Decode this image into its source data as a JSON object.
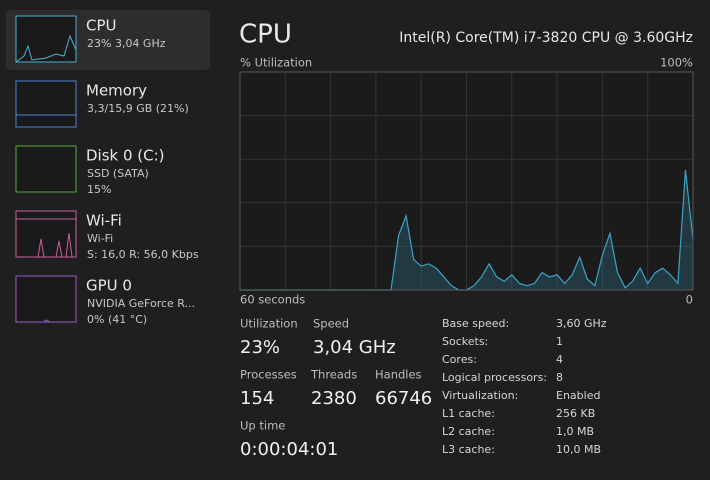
{
  "sidebar": [
    {
      "title": "CPU",
      "lines": [
        "23% 3,04 GHz"
      ]
    },
    {
      "title": "Memory",
      "lines": [
        "3,3/15,9 GB (21%)"
      ]
    },
    {
      "title": "Disk 0 (C:)",
      "lines": [
        "SSD (SATA)",
        "15%"
      ]
    },
    {
      "title": "Wi-Fi",
      "lines": [
        "Wi-Fi",
        "S: 16,0 R: 56,0 Kbps"
      ]
    },
    {
      "title": "GPU 0",
      "lines": [
        "NVIDIA GeForce R...",
        "0% (41 °C)"
      ]
    }
  ],
  "header": {
    "title": "CPU",
    "model": "Intel(R) Core(TM) i7-3820 CPU @ 3.60GHz"
  },
  "graph": {
    "y_label": "% Utilization",
    "y_max_label": "100%",
    "x_label": "60 seconds",
    "x_min_label": "0",
    "ylim": [
      0,
      100
    ],
    "values": [
      0,
      0,
      0,
      0,
      0,
      0,
      0,
      0,
      0,
      0,
      0,
      0,
      0,
      0,
      0,
      0,
      0,
      0,
      0,
      0,
      0,
      25,
      34,
      14,
      11,
      12,
      10,
      6,
      2,
      0,
      0,
      2,
      6,
      12,
      6,
      4,
      7,
      3,
      2,
      3,
      8,
      6,
      7,
      3,
      7,
      15,
      5,
      2,
      16,
      26,
      8,
      1,
      4,
      10,
      3,
      8,
      10,
      7,
      3,
      55,
      23
    ]
  },
  "stats": [
    {
      "label": "Utilization",
      "value": "23%"
    },
    {
      "label": "Speed",
      "value": "3,04 GHz"
    },
    {
      "label": "Processes",
      "value": "154"
    },
    {
      "label": "Threads",
      "value": "2380"
    },
    {
      "label": "Handles",
      "value": "66746"
    },
    {
      "label": "Up time",
      "value": "0:00:04:01"
    }
  ],
  "details": [
    [
      "Base speed:",
      "3,60 GHz"
    ],
    [
      "Sockets:",
      "1"
    ],
    [
      "Cores:",
      "4"
    ],
    [
      "Logical processors:",
      "8"
    ],
    [
      "Virtualization:",
      "Enabled"
    ],
    [
      "L1 cache:",
      "256 KB"
    ],
    [
      "L2 cache:",
      "1,0 MB"
    ],
    [
      "L3 cache:",
      "10,0 MB"
    ]
  ]
}
